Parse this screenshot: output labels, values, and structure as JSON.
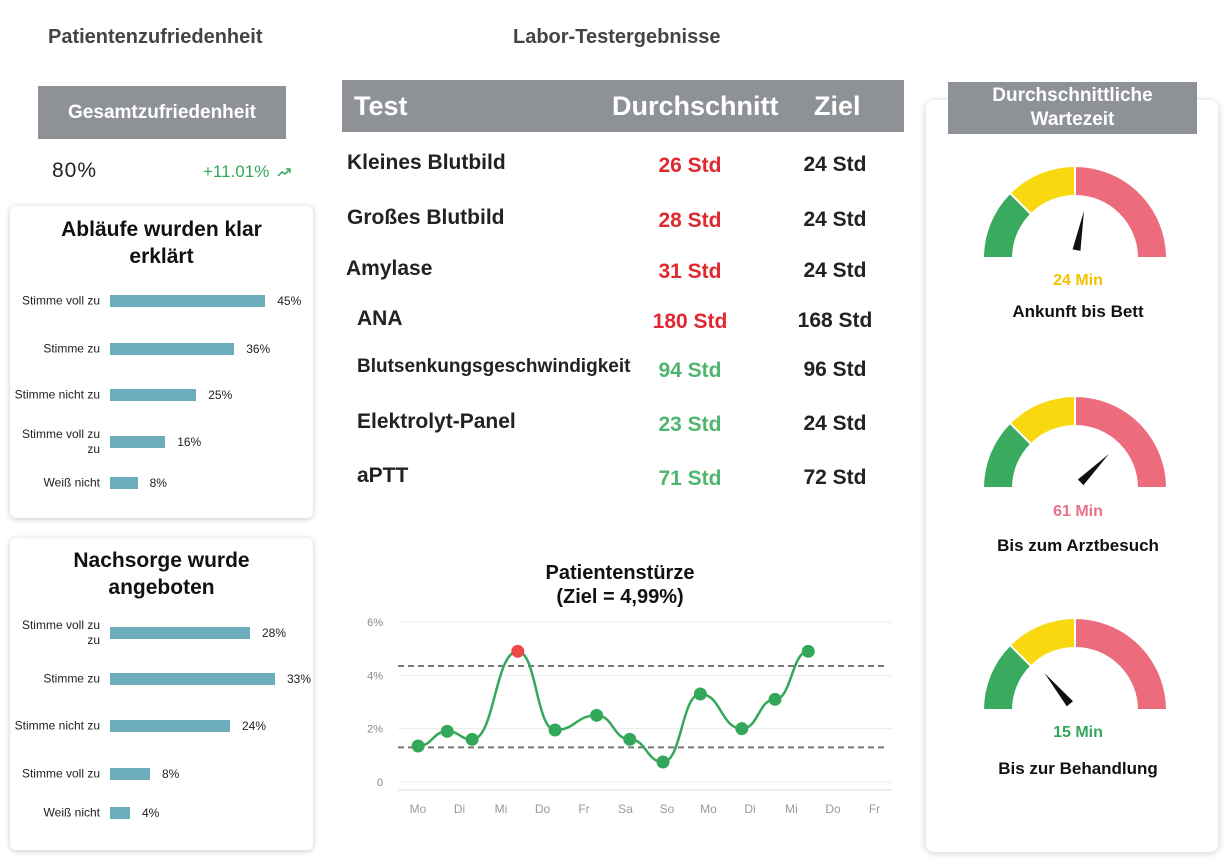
{
  "satisfaction": {
    "title": "Patientenzufriedenheit",
    "overall_label": "Gesamtzufriedenheit",
    "overall_value": "80%",
    "overall_delta": "+11.01%",
    "trend_icon": "trend-up-icon"
  },
  "survey1": {
    "title": "Abläufe wurden klar erklärt",
    "items": [
      {
        "label": "Stimme voll zu",
        "value": 45,
        "pct": "45%"
      },
      {
        "label": "Stimme zu",
        "value": 36,
        "pct": "36%"
      },
      {
        "label": "Stimme nicht zu",
        "value": 25,
        "pct": "25%"
      },
      {
        "label": "Stimme voll zu zu",
        "value": 16,
        "pct": "16%"
      },
      {
        "label": "Weiß nicht",
        "value": 8,
        "pct": "8%"
      }
    ]
  },
  "survey2": {
    "title": "Nachsorge wurde angeboten",
    "items": [
      {
        "label": "Stimme voll zu zu",
        "value": 28,
        "pct": "28%"
      },
      {
        "label": "Stimme zu",
        "value": 33,
        "pct": "33%"
      },
      {
        "label": "Stimme nicht zu",
        "value": 24,
        "pct": "24%"
      },
      {
        "label": "Stimme voll zu",
        "value": 8,
        "pct": "8%"
      },
      {
        "label": "Weiß nicht",
        "value": 4,
        "pct": "4%"
      }
    ]
  },
  "lab": {
    "title": "Labor-Testergebnisse",
    "headers": {
      "test": "Test",
      "avg": "Durchschnitt",
      "target": "Ziel"
    },
    "rows": [
      {
        "test": "Kleines Blutbild",
        "avg": "26 Std",
        "target": "24 Std",
        "status": "over"
      },
      {
        "test": "Großes Blutbild",
        "avg": "28 Std",
        "target": "24 Std",
        "status": "over"
      },
      {
        "test": "Amylase",
        "avg": "31 Std",
        "target": "24 Std",
        "status": "over"
      },
      {
        "test": "ANA",
        "avg": "180 Std",
        "target": "168 Std",
        "status": "over"
      },
      {
        "test": "Blutsenkungsgeschwindigkeit",
        "avg": "94 Std",
        "target": "96 Std",
        "status": "under"
      },
      {
        "test": "Elektrolyt-Panel",
        "avg": "23 Std",
        "target": "24 Std",
        "status": "under"
      },
      {
        "test": "aPTT",
        "avg": "71 Std",
        "target": "72 Std",
        "status": "under"
      }
    ],
    "colors": {
      "over": "#e0282f",
      "under": "#4fb56f"
    }
  },
  "chart_data": {
    "type": "line",
    "title": "Patientenstürze",
    "subtitle": "(Ziel = 4,99%)",
    "categories": [
      "Mo",
      "Di",
      "Mi",
      "Do",
      "Fr",
      "Sa",
      "So",
      "Mo",
      "Di",
      "Mi",
      "Do",
      "Fr"
    ],
    "x_points": [
      0.1,
      0.8,
      1.4,
      2.5,
      3.4,
      4.4,
      5.2,
      6.0,
      6.9,
      7.9,
      8.7,
      9.5
    ],
    "values": [
      1.35,
      1.9,
      1.6,
      4.9,
      1.95,
      2.5,
      1.6,
      0.75,
      3.3,
      2.0,
      3.1,
      4.9
    ],
    "highlight_index": 3,
    "ylim": [
      0,
      6
    ],
    "yticks": [
      {
        "v": 6,
        "label": "6%"
      },
      {
        "v": 4,
        "label": "4%"
      },
      {
        "v": 2,
        "label": "2%"
      },
      {
        "v": 0,
        "label": "0"
      }
    ],
    "upper_limit": 4.35,
    "lower_limit": 1.3,
    "line_color": "#34a85a",
    "highlight_color": "#f0474c"
  },
  "wait": {
    "title": "Durchschnittliche Wartezeit",
    "gauges": [
      {
        "value": "24 Min",
        "label": "Ankunft bis Bett",
        "value_color": "#f2c200",
        "needle": 0.56
      },
      {
        "value": "61 Min",
        "label": "Bis zum Arztbesuch",
        "value_color": "#e8718a",
        "needle": 0.75
      },
      {
        "value": "15 Min",
        "label": "Bis zur Behandlung",
        "value_color": "#34a85a",
        "needle": 0.28
      }
    ],
    "zone_colors": {
      "green": "#3aaa5f",
      "yellow": "#f8d90f",
      "red": "#ec6b7d"
    }
  }
}
